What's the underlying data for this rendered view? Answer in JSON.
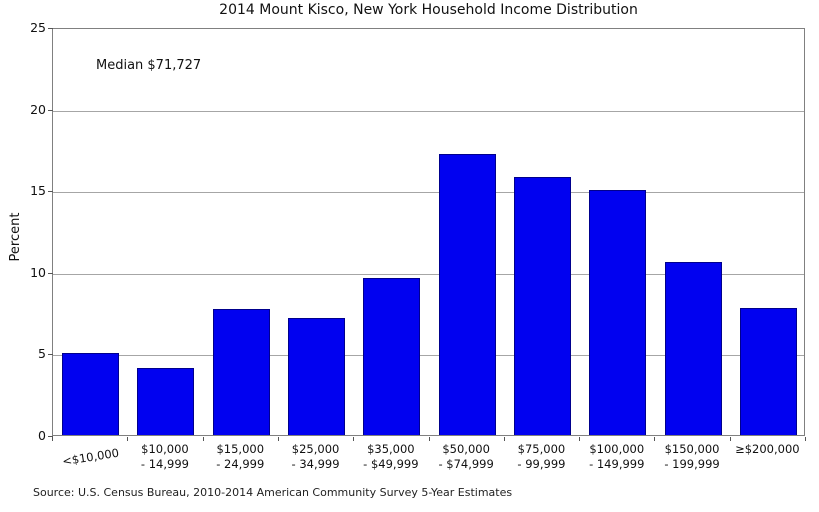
{
  "chart_data": {
    "type": "bar",
    "title": "2014 Mount Kisco, New York Household Income Distribution",
    "ylabel": "Percent",
    "xlabel": "",
    "annotation": "Median $71,727",
    "source": "Source: U.S. Census Bureau, 2010-2014 American Community Survey 5-Year Estimates",
    "categories": [
      "<$10,000",
      "$10,000\n- 14,999",
      "$15,000\n- 24,999",
      "$25,000\n- 34,999",
      "$35,000\n- $49,999",
      "$50,000\n- $74,999",
      "$75,000\n- 99,999",
      "$100,000\n- 149,999",
      "$150,000\n- 199,999",
      "≥$200,000"
    ],
    "values": [
      5.0,
      4.1,
      7.7,
      7.2,
      9.6,
      17.2,
      15.8,
      15.0,
      10.6,
      7.8
    ],
    "ylim": [
      0,
      25
    ],
    "yticks": [
      0,
      5,
      10,
      15,
      20,
      25
    ],
    "grid": "horizontal",
    "legend_position": "none",
    "bar_color": "#0101f0",
    "grid_color": "#a6a6a6",
    "frame_color": "#808080"
  }
}
